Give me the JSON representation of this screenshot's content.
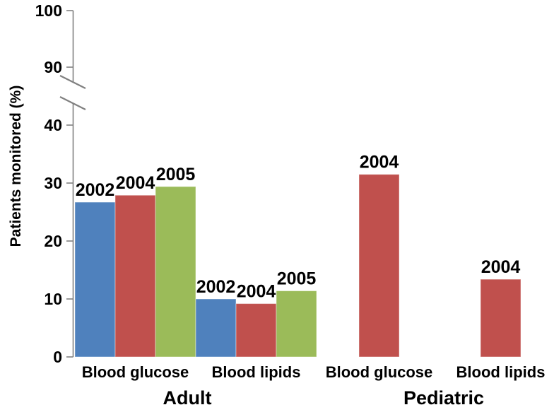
{
  "chart_data": {
    "type": "bar",
    "title": "",
    "ylabel": "Patients monitored (%)",
    "y_axis": {
      "lower_ticks": [
        0,
        10,
        20,
        30,
        40
      ],
      "upper_ticks": [
        90,
        100
      ],
      "axis_break": true,
      "lower_range": [
        0,
        45
      ],
      "upper_range": [
        88,
        100
      ],
      "grid": false
    },
    "legend": "none (years labeled above each bar)",
    "colors": {
      "2002": "#4f81bd",
      "2004": "#c0504d",
      "2005": "#9bbb59",
      "axis": "#808080",
      "text": "#000000",
      "background": "#ffffff"
    },
    "groups": [
      {
        "label": "Adult",
        "categories": [
          {
            "label": "Blood glucose",
            "bars": [
              {
                "year": "2002",
                "value": 26.7
              },
              {
                "year": "2004",
                "value": 27.9
              },
              {
                "year": "2005",
                "value": 29.4
              }
            ]
          },
          {
            "label": "Blood lipids",
            "bars": [
              {
                "year": "2002",
                "value": 10.0
              },
              {
                "year": "2004",
                "value": 9.2
              },
              {
                "year": "2005",
                "value": 11.4
              }
            ]
          }
        ]
      },
      {
        "label": "Pediatric",
        "categories": [
          {
            "label": "Blood glucose",
            "bars": [
              {
                "year": "2004",
                "value": 31.5
              }
            ]
          },
          {
            "label": "Blood lipids",
            "bars": [
              {
                "year": "2004",
                "value": 13.4
              }
            ]
          }
        ]
      }
    ]
  }
}
